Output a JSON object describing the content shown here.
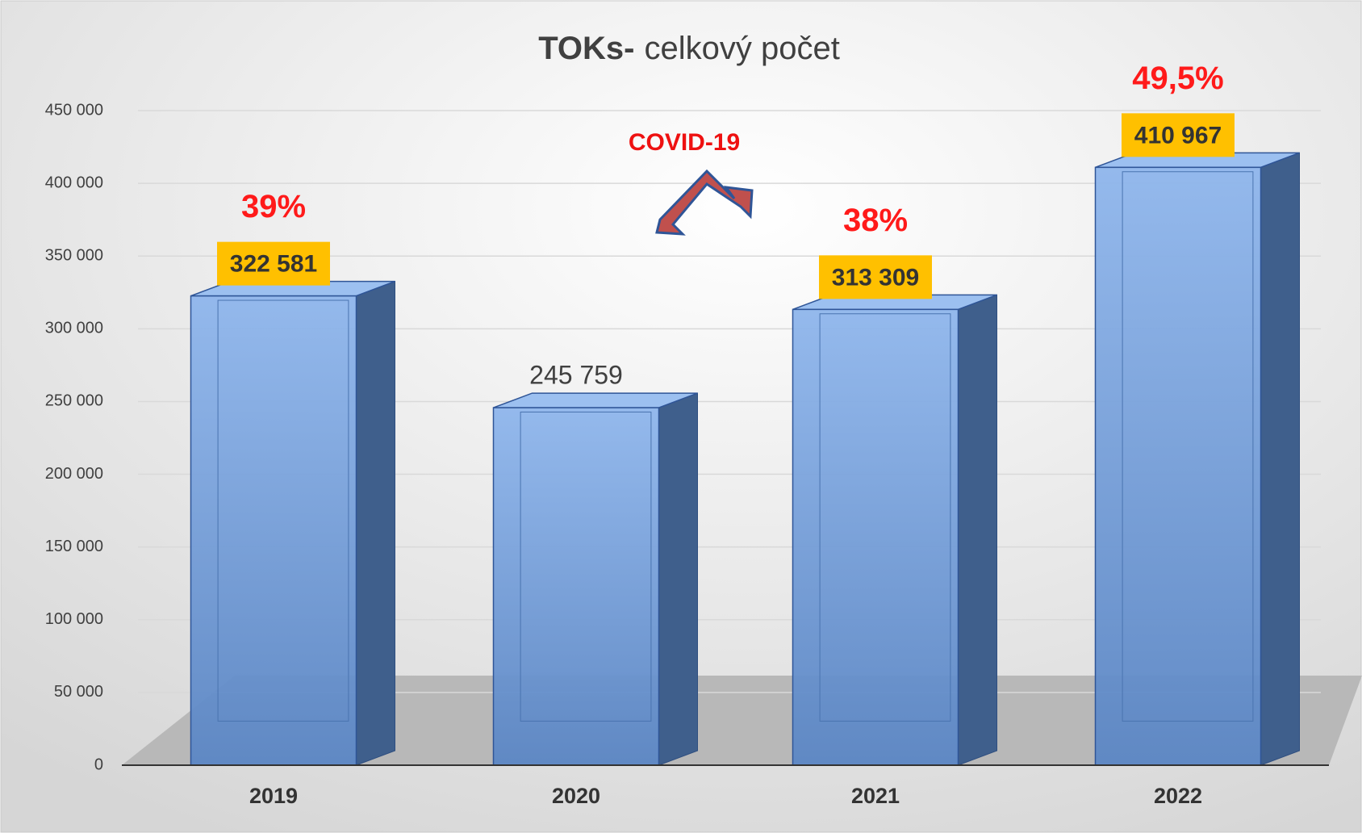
{
  "chart_data": {
    "type": "bar",
    "title": [
      "TOKs-",
      "celkový počet"
    ],
    "categories": [
      "2019",
      "2020",
      "2021",
      "2022"
    ],
    "values": [
      322581,
      245759,
      313309,
      410967
    ],
    "value_labels": [
      "322 581",
      "245 759",
      "313 309",
      "410 967"
    ],
    "highlighted": [
      true,
      false,
      true,
      true
    ],
    "percent_labels": [
      "39%",
      null,
      "38%",
      "49,5%"
    ],
    "annotation": "COVID-19",
    "color": "#5b8fd6",
    "ylim": [
      0,
      450000
    ],
    "yticks": [
      0,
      {
        "value": 50000,
        "label": "50 000"
      },
      {
        "value": 100000,
        "label": "100 000"
      },
      {
        "value": 150000,
        "label": "150 000"
      },
      {
        "value": 200000,
        "label": "200 000"
      },
      {
        "value": 250000,
        "label": "250 000"
      },
      {
        "value": 300000,
        "label": "300 000"
      },
      {
        "value": 350000,
        "label": "350 000"
      },
      {
        "value": 400000,
        "label": "400 000"
      },
      {
        "value": 450000,
        "label": "450 000"
      }
    ],
    "grid": true
  }
}
